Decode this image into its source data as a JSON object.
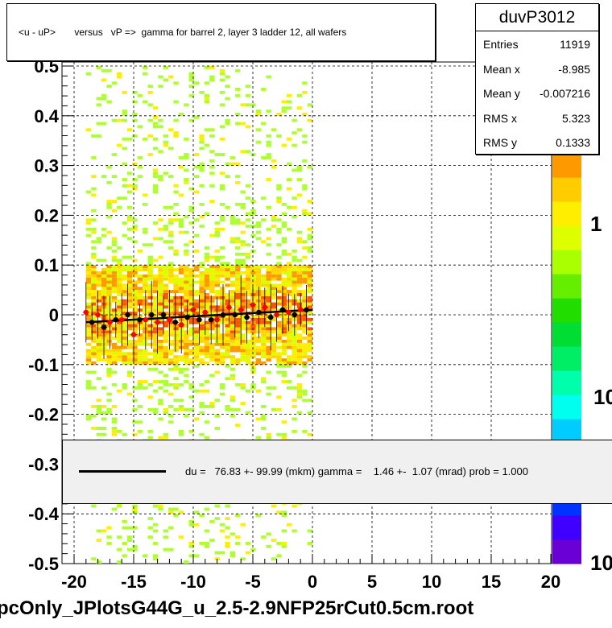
{
  "title": "<u - uP>       versus   vP =>  gamma for barrel 2, layer 3 ladder 12, all wafers",
  "stats": {
    "name": "duvP3012",
    "rows": [
      {
        "label": "Entries",
        "value": "11919"
      },
      {
        "label": "Mean x",
        "value": "-8.985"
      },
      {
        "label": "Mean y",
        "value": "-0.007216"
      },
      {
        "label": "RMS x",
        "value": "5.323"
      },
      {
        "label": "RMS y",
        "value": "0.1333"
      }
    ]
  },
  "fit_legend": "du =   76.83 +- 99.99 (mkm) gamma =    1.46 +-  1.07 (mrad) prob = 1.000",
  "footer": "pcOnly_JPlotsG44G_u_2.5-2.9NFP25rCut0.5cm.root",
  "colors": {
    "profile_black": "#000000",
    "profile_red": "#ff0000",
    "fit_line": "#000000",
    "legend_bg": "#f0f0f0"
  },
  "chart_data": {
    "type": "heatmap",
    "title": "<u - uP>       versus   vP =>  gamma for barrel 2, layer 3 ladder 12, all wafers",
    "xlabel": "",
    "ylabel": "",
    "xlim": [
      -20,
      20
    ],
    "ylim": [
      -0.5,
      0.5
    ],
    "x_ticks": [
      -20,
      -15,
      -10,
      -5,
      0,
      5,
      10,
      15,
      20
    ],
    "y_ticks": [
      -0.5,
      -0.4,
      -0.3,
      -0.2,
      -0.1,
      0,
      0.1,
      0.2,
      0.3,
      0.4,
      0.5
    ],
    "grid": true,
    "z_scale": "log",
    "z_tick_labels": [
      "1",
      "10",
      "10"
    ],
    "data_x_range": [
      -19,
      0
    ],
    "core_y_range": [
      -0.1,
      0.1
    ],
    "fit": {
      "x": [
        -19,
        0
      ],
      "y": [
        -0.015,
        0.01
      ]
    },
    "profile_black": {
      "x": [
        -18.5,
        -17.5,
        -16.5,
        -15.5,
        -14.5,
        -13.5,
        -12.5,
        -11.5,
        -10.5,
        -9.5,
        -8.5,
        -7.5,
        -6.5,
        -5.5,
        -4.5,
        -3.5,
        -2.5,
        -1.5,
        -0.5
      ],
      "y": [
        -0.015,
        -0.025,
        -0.01,
        0.0,
        -0.01,
        0.0,
        0.0,
        -0.015,
        -0.005,
        -0.01,
        -0.01,
        0.0,
        0.0,
        -0.005,
        0.005,
        -0.005,
        0.01,
        0.0,
        0.01
      ]
    },
    "profile_red": {
      "x": [
        -19,
        -18,
        -17,
        -16,
        -15,
        -14,
        -13,
        -12,
        -11,
        -10,
        -9,
        -8,
        -7,
        -6,
        -5,
        -4,
        -3,
        -2,
        -1
      ],
      "y": [
        0.005,
        0.0,
        -0.015,
        -0.01,
        -0.04,
        -0.01,
        -0.015,
        -0.01,
        -0.02,
        0.01,
        0.005,
        -0.01,
        0.015,
        0.01,
        0.02,
        0.015,
        0.0,
        0.005,
        0.01
      ]
    }
  }
}
